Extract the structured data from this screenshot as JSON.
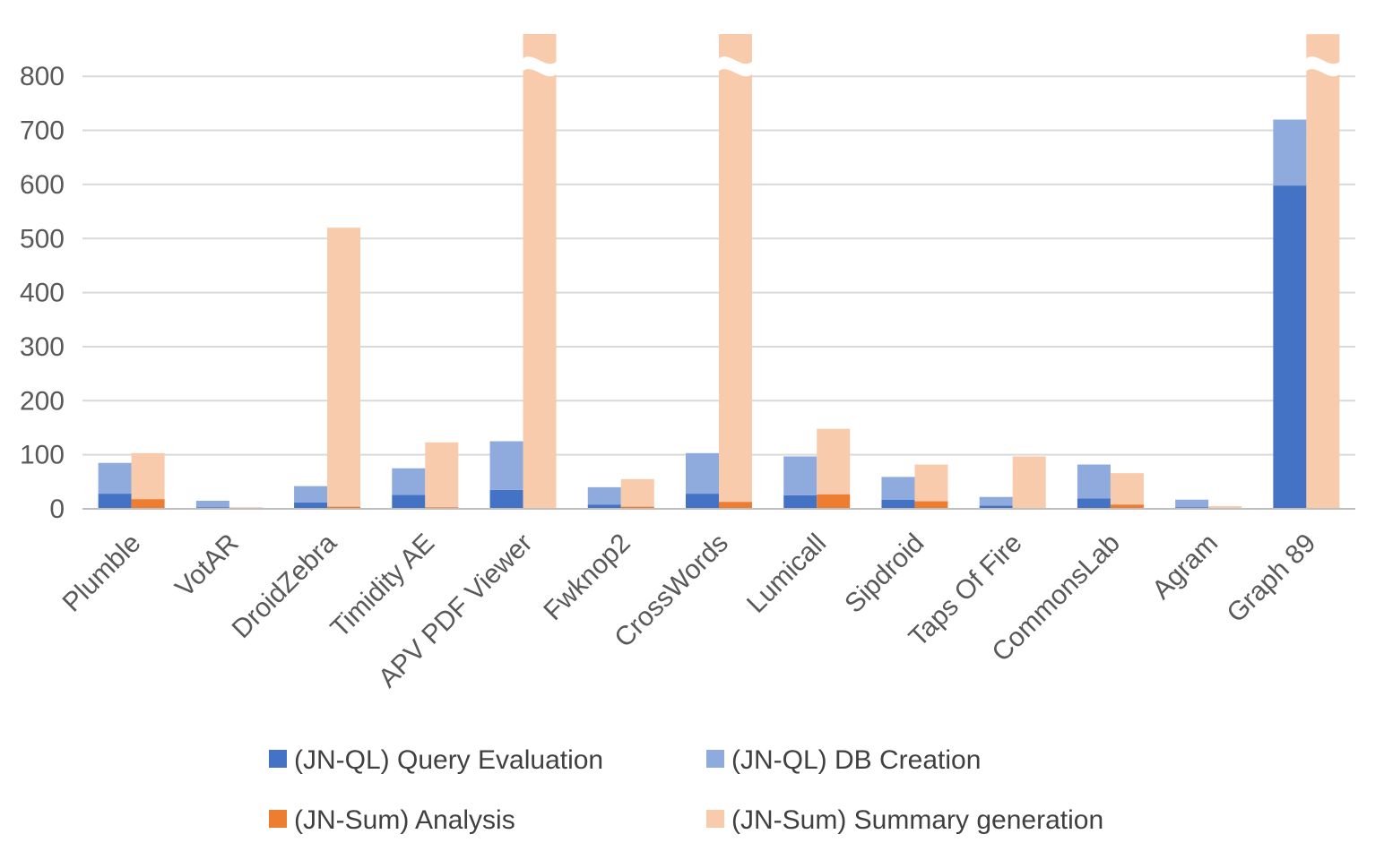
{
  "chart_data": {
    "type": "bar",
    "stacked": true,
    "grouped": true,
    "ylim": [
      0,
      880
    ],
    "yticks": [
      0,
      100,
      200,
      300,
      400,
      500,
      600,
      700,
      800
    ],
    "grid": true,
    "legend_position": "bottom",
    "axis_break_above": 810,
    "categories": [
      "Plumble",
      "VotAR",
      "DroidZebra",
      "Timidity AE",
      "APV PDF Viewer",
      "Fwknop2",
      "CrossWords",
      "Lumicall",
      "Sipdroid",
      "Taps Of Fire",
      "CommonsLab",
      "Agram",
      "Graph 89"
    ],
    "groups": [
      {
        "name": "JN-QL",
        "series": [
          {
            "name": "(JN-QL) Query Evaluation",
            "color": "#4472c4",
            "values": [
              28,
              3,
              12,
              26,
              35,
              8,
              28,
              25,
              17,
              6,
              19,
              3,
              598
            ]
          },
          {
            "name": "(JN-QL) DB Creation",
            "color": "#8faadc",
            "values": [
              57,
              12,
              30,
              49,
              90,
              32,
              75,
              72,
              42,
              16,
              63,
              14,
              122
            ]
          }
        ]
      },
      {
        "name": "JN-Sum",
        "series": [
          {
            "name": "(JN-Sum) Analysis",
            "color": "#ed7d31",
            "values": [
              18,
              1,
              4,
              3,
              1,
              4,
              13,
              27,
              14,
              2,
              8,
              1,
              2
            ]
          },
          {
            "name": "(JN-Sum) Summary generation",
            "color": "#f8cbad",
            "values": [
              85,
              2,
              516,
              120,
              878,
              51,
              866,
              121,
              68,
              95,
              58,
              4,
              876
            ]
          }
        ]
      }
    ],
    "broken_bars": [
      "APV PDF Viewer",
      "CrossWords",
      "Graph 89"
    ]
  }
}
